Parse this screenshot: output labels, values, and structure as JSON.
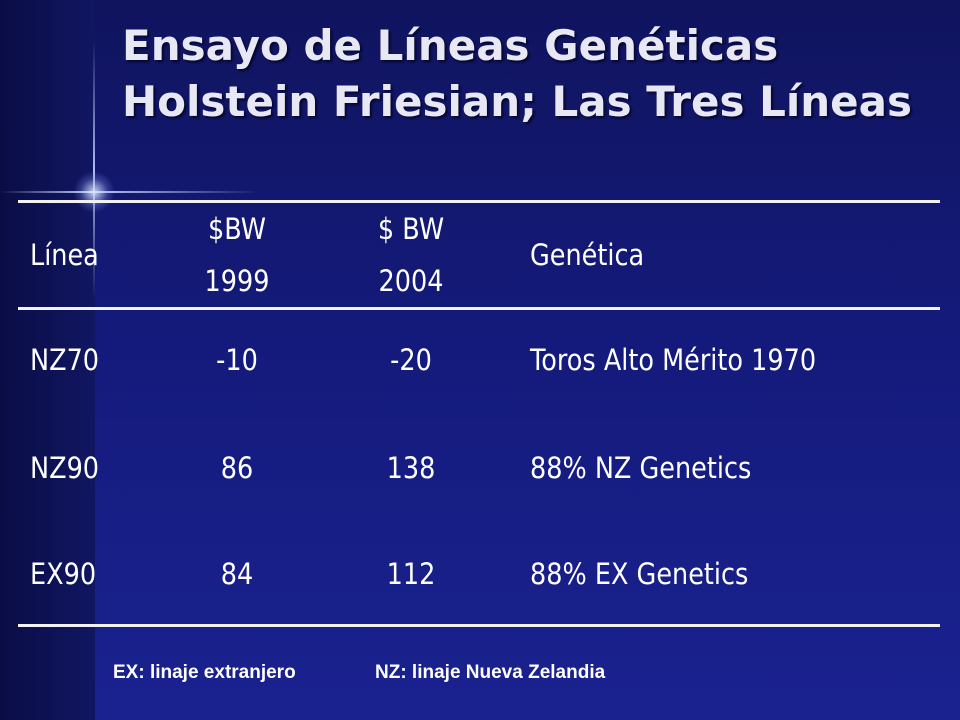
{
  "slide": {
    "title": "Ensayo de Líneas Genéticas Holstein Friesian; Las Tres Líneas"
  },
  "table": {
    "headers": {
      "linea": "Línea",
      "bw1999_top": "$BW",
      "bw1999_bottom": "1999",
      "bw2004_top": "$ BW",
      "bw2004_bottom": "2004",
      "genetica": "Genética"
    },
    "rows": [
      {
        "linea": "NZ70",
        "bw1999": "-10",
        "bw2004": "-20",
        "genetica": "Toros Alto Mérito 1970"
      },
      {
        "linea": "NZ90",
        "bw1999": "86",
        "bw2004": "138",
        "genetica": "88% NZ Genetics"
      },
      {
        "linea": "EX90",
        "bw1999": "84",
        "bw2004": "112",
        "genetica": "88% EX Genetics"
      }
    ]
  },
  "footnotes": {
    "ex": "EX: linaje extranjero",
    "nz": "NZ: linaje Nueva Zelandia"
  },
  "colors": {
    "background": "#141a7a",
    "text": "#ffffff",
    "rule": "#f2f2f2"
  }
}
